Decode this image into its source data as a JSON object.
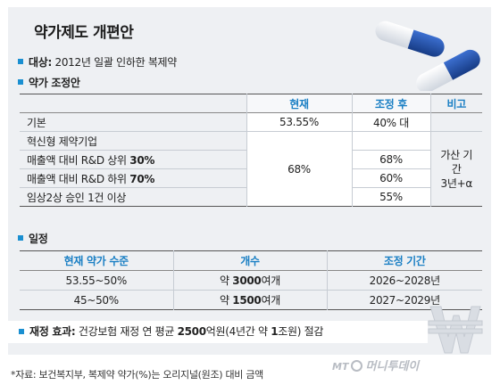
{
  "title": "약가제도 개편안",
  "target": {
    "label": "대상:",
    "value": " 2012년 일괄 인하한 복제약"
  },
  "adjust": {
    "label": "약가 조정안"
  },
  "table1": {
    "headers": {
      "current": "현재",
      "adjusted": "조정 후",
      "note": "비고"
    },
    "rows": [
      {
        "label": "기본",
        "current": "53.55%",
        "adjusted": "40% 대"
      },
      {
        "label": "혁신형 제약기업",
        "current": "",
        "adjusted": ""
      },
      {
        "label_prefix": "매출액 대비 R&D 상위 ",
        "label_bold": "30%",
        "current": "",
        "adjusted": "68%"
      },
      {
        "label_prefix": "매출액 대비 R&D 하위 ",
        "label_bold": "70%",
        "current": "",
        "adjusted": "60%"
      },
      {
        "label": "임상2상 승인 1건 이상",
        "current": "",
        "adjusted": "55%"
      }
    ],
    "merged_current": "68%",
    "note_line1": "가산 기간",
    "note_line2": "3년+α"
  },
  "schedule": {
    "label": "일정"
  },
  "table2": {
    "headers": {
      "level": "현재 약가 수준",
      "count": "개수",
      "period": "조정 기간"
    },
    "rows": [
      {
        "level": "53.55~50%",
        "count_prefix": "약 ",
        "count_bold": "3000",
        "count_suffix": "여개",
        "period": "2026~2028년"
      },
      {
        "level": "45~50%",
        "count_prefix": "약 ",
        "count_bold": "1500",
        "count_suffix": "여개",
        "period": "2027~2029년"
      }
    ]
  },
  "fiscal": {
    "label": "재정 효과:",
    "text_a": " 건강보험 재정 연 평균 ",
    "bold_a": "2500",
    "text_b": "억원(4년간 약 ",
    "bold_b": "1",
    "text_c": "조원) 절감"
  },
  "footnote": "*자료: 보건복지부, 복제약 약가(%)는 오리지널(원조) 대비 금액",
  "logo": {
    "prefix": "MT",
    "text": "머니투데이"
  },
  "colors": {
    "accent": "#1a8fd1",
    "header_text": "#1a7fc4",
    "panel": "#eef0f3",
    "capsule_blue": "#1f4fa8"
  },
  "icons": [
    "capsule-icon",
    "won-symbol-icon"
  ]
}
